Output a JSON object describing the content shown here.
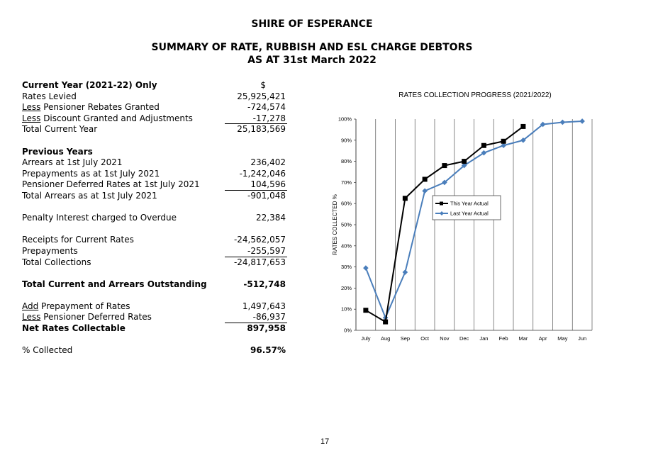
{
  "header": {
    "org": "SHIRE OF ESPERANCE",
    "title": "SUMMARY OF RATE, RUBBISH AND ESL CHARGE DEBTORS",
    "date": "AS AT 31st March 2022"
  },
  "ledger": {
    "current_heading": "Current Year (2021-22) Only",
    "currency": "$",
    "rates_levied": {
      "label": "Rates Levied",
      "value": "25,925,421"
    },
    "rebates": {
      "prefix": "Less",
      "label": " Pensioner Rebates Granted",
      "value": "-724,574"
    },
    "discounts": {
      "prefix": "Less",
      "label": " Discount Granted and Adjustments",
      "value": "-17,278"
    },
    "total_current": {
      "label": "Total Current Year",
      "value": "25,183,569"
    },
    "previous_heading": "Previous Years",
    "arrears": {
      "label": "Arrears at 1st July 2021",
      "value": "236,402"
    },
    "prepayments_july": {
      "label": "Prepayments as at 1st July 2021",
      "value": "-1,242,046"
    },
    "pensioner_deferred": {
      "label": "Pensioner Deferred Rates at 1st July 2021",
      "value": "104,596"
    },
    "total_arrears": {
      "label": "Total Arrears as at 1st July 2021",
      "value": "-901,048"
    },
    "penalty": {
      "label": "Penalty Interest charged to Overdue",
      "value": "22,384"
    },
    "receipts": {
      "label": "Receipts for Current Rates",
      "value": "-24,562,057"
    },
    "prepayments": {
      "label": "Prepayments",
      "value": "-255,597"
    },
    "total_collections": {
      "label": "Total Collections",
      "value": "-24,817,653"
    },
    "outstanding": {
      "label": "Total Current and Arrears Outstanding",
      "value": "-512,748"
    },
    "add_prepayment": {
      "prefix": "Add",
      "label": " Prepayment of Rates",
      "value": "1,497,643"
    },
    "less_deferred": {
      "prefix": "Less",
      "label": " Pensioner Deferred Rates",
      "value": "-86,937"
    },
    "net_collectable": {
      "label": "Net Rates Collectable",
      "value": "897,958"
    },
    "pct_collected": {
      "label": "% Collected",
      "value": "96.57%"
    }
  },
  "chart_data": {
    "type": "line",
    "title": "RATES COLLECTION PROGRESS (2021/2022)",
    "ylabel": "RATES COLLECTED %",
    "xlabel": "",
    "categories": [
      "July",
      "Aug",
      "Sep",
      "Oct",
      "Nov",
      "Dec",
      "Jan",
      "Feb",
      "Mar",
      "Apr",
      "May",
      "Jun"
    ],
    "yticks": [
      "0%",
      "10%",
      "20%",
      "30%",
      "40%",
      "50%",
      "60%",
      "70%",
      "80%",
      "90%",
      "100%"
    ],
    "ylim": [
      0,
      100
    ],
    "grid": "vertical",
    "legend": "middle-right",
    "series": [
      {
        "name": "This Year Actual",
        "color": "#000000",
        "marker": "square",
        "values": [
          9.5,
          4,
          62.5,
          71.5,
          78,
          80,
          87.5,
          89.5,
          96.5,
          null,
          null,
          null
        ]
      },
      {
        "name": "Last Year Actual",
        "color": "#4a7ebb",
        "marker": "diamond",
        "values": [
          29.5,
          6,
          27.5,
          66,
          70,
          78,
          84,
          87.5,
          90,
          97.5,
          98.5,
          99
        ]
      }
    ]
  },
  "footer": {
    "page": "17"
  }
}
